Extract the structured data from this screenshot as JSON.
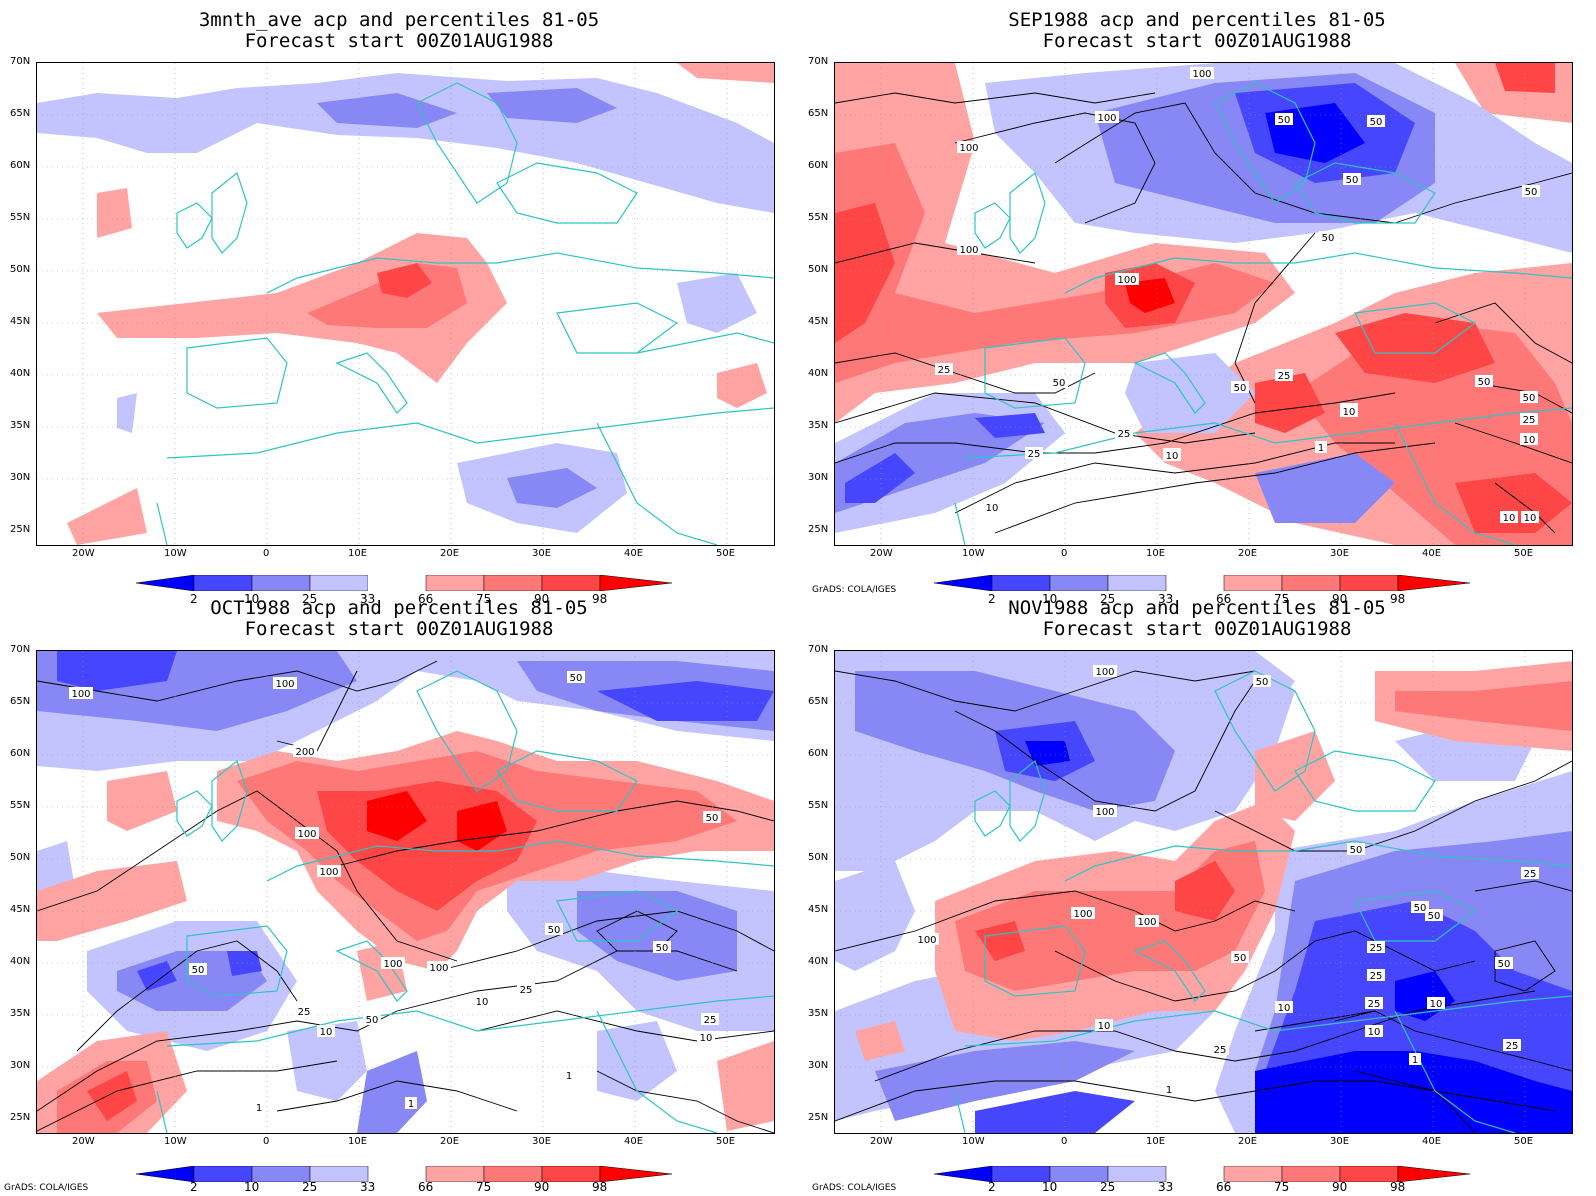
{
  "colors": {
    "blue_2": "#0000ff",
    "blue_10": "#4646ff",
    "blue_25": "#8787f5",
    "blue_33": "#c3c3ff",
    "red_66": "#ffa3a3",
    "red_75": "#ff7878",
    "red_90": "#ff4646",
    "red_98": "#ff0000",
    "coast": "#2ec4c4",
    "contour": "#000000",
    "grid": "#999999"
  },
  "credit": "GrADS: COLA/IGES",
  "lat_labels": [
    "70N",
    "65N",
    "60N",
    "55N",
    "50N",
    "45N",
    "40N",
    "35N",
    "30N",
    "25N"
  ],
  "lon_labels": [
    "20W",
    "10W",
    "0",
    "10E",
    "20E",
    "30E",
    "40E",
    "50E"
  ],
  "colorbar_labels": [
    "2",
    "10",
    "25",
    "33",
    "66",
    "75",
    "90",
    "98"
  ],
  "panels": [
    {
      "title_line1": "3mnth_ave acp and percentiles 81-05",
      "title_line2": "Forecast start 00Z01AUG1988",
      "contour_labels": []
    },
    {
      "title_line1": "SEP1988 acp and percentiles 81-05",
      "title_line2": "Forecast start 00Z01AUG1988",
      "contour_labels": [
        "100",
        "100",
        "100",
        "50",
        "50",
        "50",
        "50",
        "100",
        "100",
        "50",
        "25",
        "25",
        "10",
        "50",
        "50",
        "25",
        "10",
        "10",
        "1",
        "10",
        "10",
        "25",
        "25",
        "10",
        "10",
        "50",
        "50",
        "10"
      ]
    },
    {
      "title_line1": "OCT1988 acp and percentiles 81-05",
      "title_line2": "Forecast start 00Z01AUG1988",
      "contour_labels": [
        "100",
        "100",
        "200",
        "50",
        "100",
        "100",
        "50",
        "50",
        "50",
        "50",
        "100",
        "100",
        "10",
        "25",
        "50",
        "10",
        "25",
        "25",
        "10",
        "1",
        "1",
        "1"
      ]
    },
    {
      "title_line1": "NOV1988 acp and percentiles 81-05",
      "title_line2": "Forecast start 00Z01AUG1988",
      "contour_labels": [
        "100",
        "50",
        "100",
        "100",
        "100",
        "50",
        "100",
        "50",
        "25",
        "50",
        "25",
        "10",
        "10",
        "50",
        "10",
        "25",
        "25",
        "25",
        "1",
        "1",
        "10",
        "50",
        "25"
      ]
    }
  ]
}
